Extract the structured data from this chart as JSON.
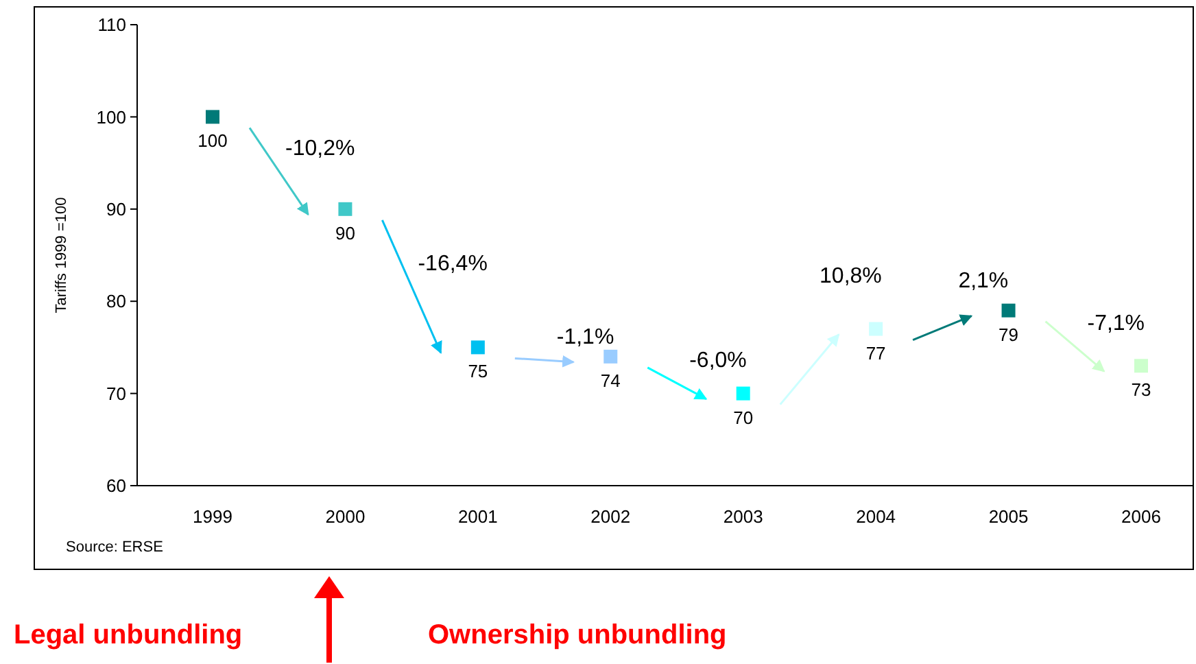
{
  "chart_data": {
    "type": "scatter",
    "marker": "square",
    "ylabel": "Tariffs 1999 =100",
    "categories": [
      "1999",
      "2000",
      "2001",
      "2002",
      "2003",
      "2004",
      "2005",
      "2006"
    ],
    "values": [
      100,
      90,
      75,
      74,
      70,
      77,
      79,
      73
    ],
    "colors": [
      "#007a78",
      "#40c8c8",
      "#00c0f0",
      "#99ccff",
      "#00ffff",
      "#ccffff",
      "#007a78",
      "#ccffcc"
    ],
    "data_labels": true,
    "ylim": [
      60,
      110
    ],
    "yticks": [
      60,
      70,
      80,
      90,
      100,
      110
    ],
    "grid": false,
    "annotations": [
      "-10,2%",
      "-16,4%",
      "-1,1%",
      "-6,0%",
      "10,8%",
      "2,1%",
      "-7,1%",
      "Source: ERSE",
      "Legal unbundling",
      "Ownership unbundling"
    ]
  }
}
